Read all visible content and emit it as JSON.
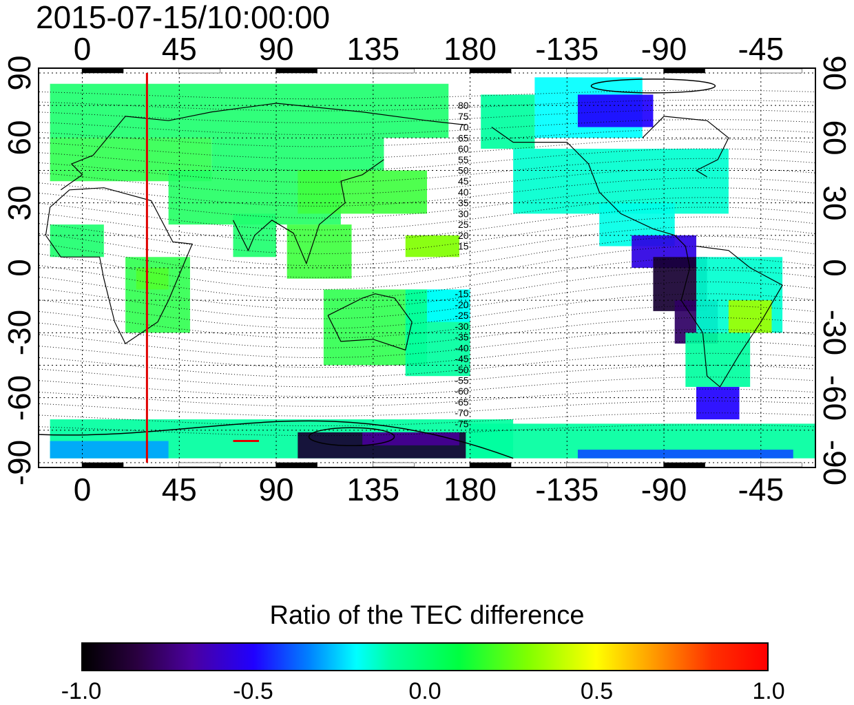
{
  "title": "2015-07-15/10:00:00",
  "x_ticks": [
    "0",
    "45",
    "90",
    "135",
    "180",
    "-135",
    "-90",
    "-45"
  ],
  "y_ticks": [
    "90",
    "60",
    "30",
    "0",
    "-30",
    "-60",
    "-90"
  ],
  "contour_labels_north": [
    "80",
    "75",
    "70",
    "65",
    "60",
    "55",
    "50",
    "45",
    "40",
    "35",
    "30",
    "25",
    "20",
    "15"
  ],
  "contour_labels_south": [
    "-15",
    "-20",
    "-25",
    "-30",
    "-35",
    "-40",
    "-45",
    "-50",
    "-55",
    "-60",
    "-65",
    "-70",
    "-75"
  ],
  "colorbar": {
    "title": "Ratio of the TEC difference",
    "ticks": [
      "-1.0",
      "-0.5",
      "0.0",
      "0.5",
      "1.0"
    ]
  },
  "colors": {
    "frame": "#000000",
    "meridian_marker": "#e00000",
    "map_fill_dominant": "#40ff60"
  },
  "map": {
    "lon_range": [
      -20,
      340
    ],
    "lat_range": [
      -90,
      90
    ],
    "marker_longitude": 30
  }
}
